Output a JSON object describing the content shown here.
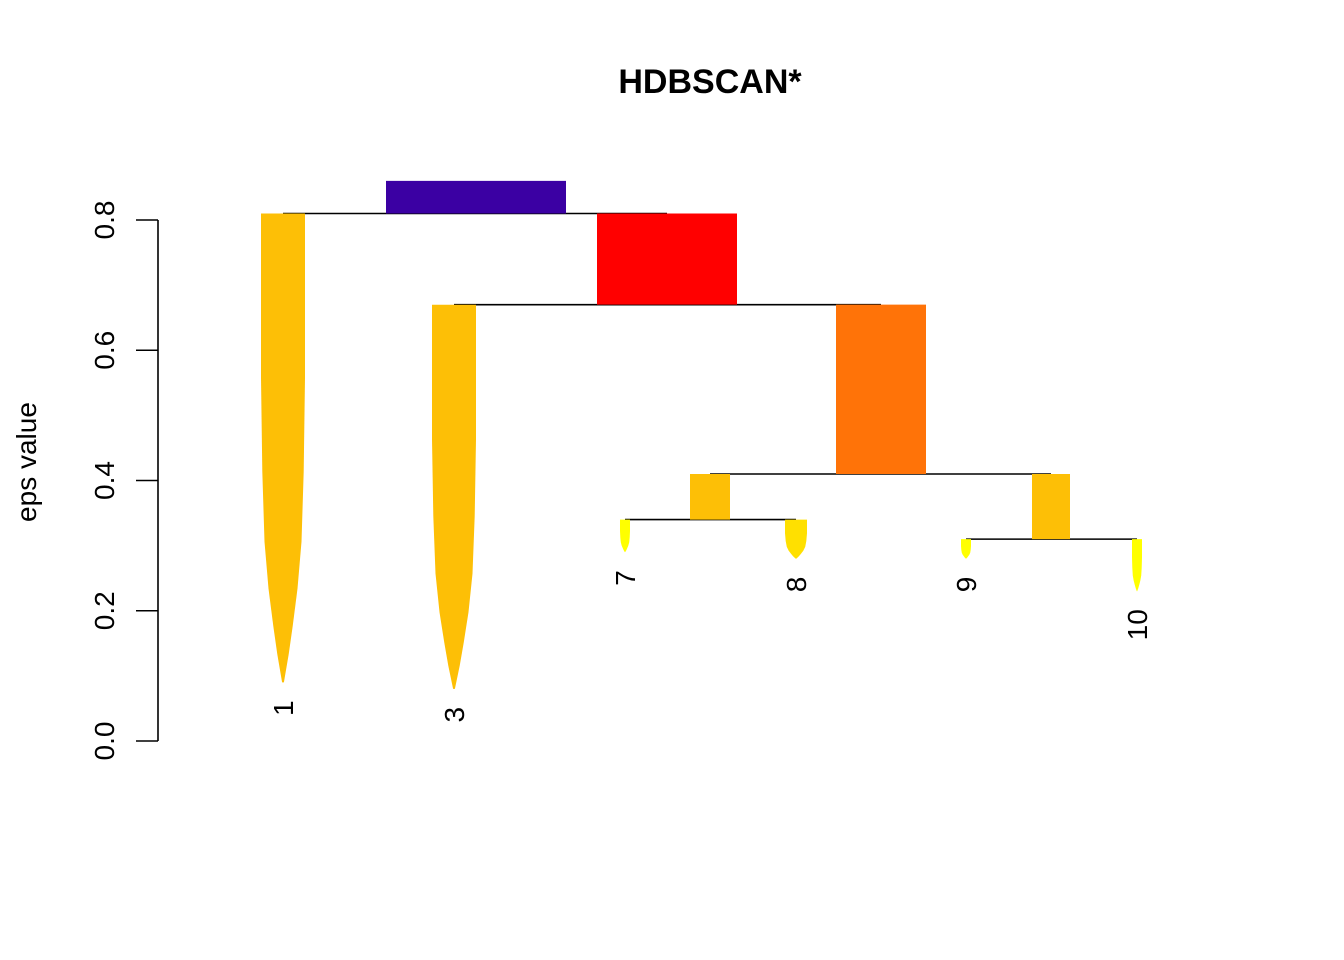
{
  "chart_data": {
    "type": "condensed-tree",
    "title": "HDBSCAN*",
    "ylabel": "eps value",
    "xlabel": "",
    "ylim": [
      0,
      0.8
    ],
    "yticks": [
      "0.0",
      "0.2",
      "0.4",
      "0.6",
      "0.8"
    ],
    "ytick_values": [
      0.0,
      0.2,
      0.4,
      0.6,
      0.8
    ],
    "nodes": [
      {
        "id": "root",
        "color": "#3B00A3",
        "top": 0.86,
        "bottom": 0.81,
        "width_points": 180,
        "taper": false
      },
      {
        "id": "inner-a",
        "color": "#FF0000",
        "top": 0.81,
        "bottom": 0.67,
        "width_points": 140,
        "taper": false
      },
      {
        "id": "inner-b",
        "color": "#FF7308",
        "top": 0.67,
        "bottom": 0.41,
        "width_points": 90,
        "taper": false
      },
      {
        "id": "inner-c",
        "color": "#FDBF06",
        "top": 0.41,
        "bottom": 0.34,
        "width_points": 40,
        "taper": false
      },
      {
        "id": "inner-d",
        "color": "#FDBF06",
        "top": 0.41,
        "bottom": 0.31,
        "width_points": 38,
        "taper": false
      },
      {
        "id": "1",
        "label": "1",
        "color": "#FDBF06",
        "top": 0.81,
        "bottom": 0.09,
        "width_points": 44,
        "taper": true
      },
      {
        "id": "3",
        "label": "3",
        "color": "#FDBF06",
        "top": 0.67,
        "bottom": 0.08,
        "width_points": 44,
        "taper": true
      },
      {
        "id": "7",
        "label": "7",
        "color": "#FFFF00",
        "top": 0.34,
        "bottom": 0.29,
        "width_points": 10,
        "taper": true
      },
      {
        "id": "8",
        "label": "8",
        "color": "#FFE000",
        "top": 0.34,
        "bottom": 0.28,
        "width_points": 22,
        "taper": true
      },
      {
        "id": "9",
        "label": "9",
        "color": "#FFFF00",
        "top": 0.31,
        "bottom": 0.28,
        "width_points": 10,
        "taper": true
      },
      {
        "id": "10",
        "label": "10",
        "color": "#FFFF00",
        "top": 0.31,
        "bottom": 0.23,
        "width_points": 10,
        "taper": true
      }
    ],
    "links": [
      {
        "parent": "root",
        "children": [
          "1",
          "inner-a"
        ],
        "eps": 0.81
      },
      {
        "parent": "inner-a",
        "children": [
          "3",
          "inner-b"
        ],
        "eps": 0.67
      },
      {
        "parent": "inner-b",
        "children": [
          "inner-c",
          "inner-d"
        ],
        "eps": 0.41
      },
      {
        "parent": "inner-c",
        "children": [
          "7",
          "8"
        ],
        "eps": 0.34
      },
      {
        "parent": "inner-d",
        "children": [
          "9",
          "10"
        ],
        "eps": 0.31
      }
    ],
    "leaf_order": [
      "1",
      "3",
      "7",
      "8",
      "9",
      "10"
    ],
    "grid": false,
    "legend": "none"
  }
}
